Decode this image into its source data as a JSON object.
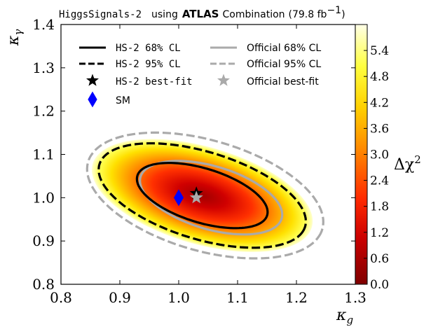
{
  "chart_data": {
    "type": "contour",
    "title": {
      "prefix": "HiggsSignals-2",
      "using": "using",
      "experiment": "ATLAS",
      "suffix": "Combination",
      "lumi": "(79.8 fb",
      "lumi_exp": "−1",
      "lumi_close": ")"
    },
    "xlabel": "κ",
    "xlabel_sub": "g",
    "ylabel": "κ",
    "ylabel_sub": "γ",
    "xlim": [
      0.8,
      1.3
    ],
    "ylim": [
      0.8,
      1.4
    ],
    "xticks": [
      0.8,
      0.9,
      1.0,
      1.1,
      1.2,
      1.3
    ],
    "yticks": [
      0.8,
      0.9,
      1.0,
      1.1,
      1.2,
      1.3,
      1.4
    ],
    "xtick_labels": [
      "0.8",
      "0.9",
      "1.0",
      "1.1",
      "1.2",
      "1.3"
    ],
    "ytick_labels": [
      "0.8",
      "0.9",
      "1.0",
      "1.1",
      "1.2",
      "1.3",
      "1.4"
    ],
    "colorbar": {
      "label": "Δχ",
      "label_exp": "2",
      "range": [
        0,
        6.0
      ],
      "ticks": [
        0.0,
        0.6,
        1.2,
        1.8,
        2.4,
        3.0,
        3.6,
        4.2,
        4.8,
        5.4
      ],
      "tick_labels": [
        "0.0",
        "0.6",
        "1.2",
        "1.8",
        "2.4",
        "3.0",
        "3.6",
        "4.2",
        "4.8",
        "5.4"
      ],
      "colormap": [
        "#7f0000",
        "#cc0000",
        "#ff2a00",
        "#ff8000",
        "#ffd000",
        "#ffff40",
        "#ffffe0"
      ]
    },
    "series": [
      {
        "name": "HS-2 68% CL",
        "kind": "contour",
        "level": 2.3,
        "center": [
          1.04,
          1.005
        ],
        "semi_major": 0.12,
        "semi_minor": 0.06,
        "angle_deg": -26,
        "color": "#000000",
        "style": "solid"
      },
      {
        "name": "HS-2 95% CL",
        "kind": "contour",
        "level": 5.99,
        "center": [
          1.04,
          1.005
        ],
        "semi_major": 0.19,
        "semi_minor": 0.097,
        "angle_deg": -26,
        "color": "#000000",
        "style": "dashed"
      },
      {
        "name": "Official 68% CL",
        "kind": "contour",
        "center": [
          1.055,
          1.0
        ],
        "semi_major": 0.13,
        "semi_minor": 0.07,
        "angle_deg": -26,
        "color": "#aaaaaa",
        "style": "solid"
      },
      {
        "name": "Official 95% CL",
        "kind": "contour",
        "center": [
          1.045,
          1.005
        ],
        "semi_major": 0.215,
        "semi_minor": 0.123,
        "angle_deg": -26,
        "color": "#aaaaaa",
        "style": "dashed"
      }
    ],
    "points": [
      {
        "name": "HS-2 best-fit",
        "x": 1.03,
        "y": 1.01,
        "marker": "star",
        "color": "#000000"
      },
      {
        "name": "Official best-fit",
        "x": 1.03,
        "y": 1.0,
        "marker": "star",
        "color": "#aaaaaa"
      },
      {
        "name": "SM",
        "x": 1.0,
        "y": 1.0,
        "marker": "diamond",
        "color": "#0000ff"
      }
    ],
    "legend": {
      "placement": "upper-left",
      "entries": [
        {
          "label": "HS-2 68% CL",
          "mono": true,
          "series": 0
        },
        {
          "label": "Official 68% CL",
          "mono": false,
          "series": 2
        },
        {
          "label": "HS-2 95% CL",
          "mono": true,
          "series": 1
        },
        {
          "label": "Official 95% CL",
          "mono": false,
          "series": 3
        },
        {
          "label": "HS-2 best-fit",
          "mono": true,
          "point": 0
        },
        {
          "label": "Official best-fit",
          "mono": false,
          "point": 1
        },
        {
          "label": "SM",
          "mono": false,
          "point": 2
        }
      ]
    }
  }
}
